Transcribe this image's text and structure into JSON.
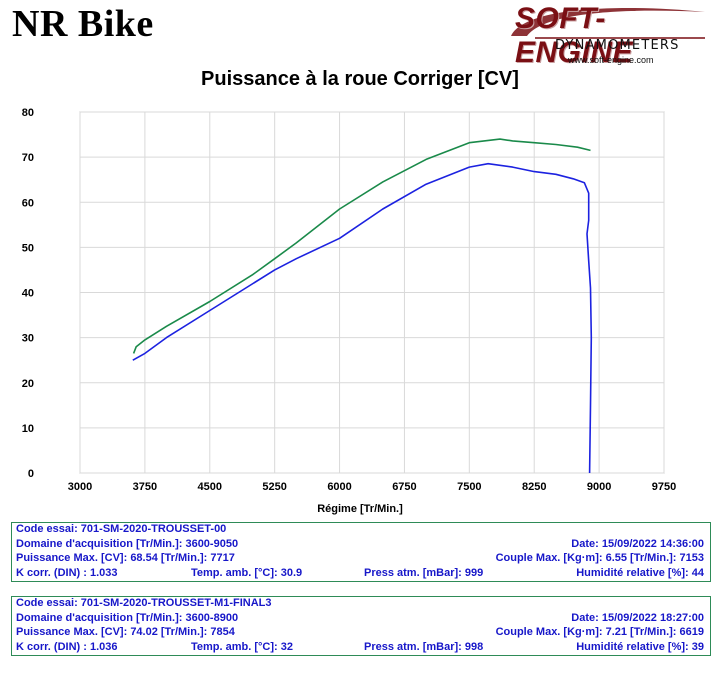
{
  "header": {
    "brand": "NR Bike",
    "logo_main": "SOFT-ENGINE",
    "logo_sub": "DYNAMOMETERS",
    "logo_url": "www.soft-engine.com"
  },
  "colors": {
    "green_series": "#1a8a4a",
    "blue_series": "#1c22e0",
    "grid": "#d9d9d9",
    "info_text": "#1717c9",
    "info_border": "#2e8b57"
  },
  "chart_data": {
    "type": "line",
    "title": "Puissance à la roue Corriger [CV]",
    "xlabel": "Régime [Tr/Min.]",
    "ylabel": "",
    "xlim": [
      3000,
      9750
    ],
    "ylim": [
      0,
      80
    ],
    "x_ticks": [
      "3000",
      "3750",
      "4500",
      "5250",
      "6000",
      "6750",
      "7500",
      "8250",
      "9000",
      "9750"
    ],
    "y_ticks": [
      "0",
      "10",
      "20",
      "30",
      "40",
      "50",
      "60",
      "70",
      "80"
    ],
    "grid": true,
    "series": [
      {
        "color": "#1a8a4a",
        "points": [
          [
            3620,
            26.5
          ],
          [
            3650,
            28
          ],
          [
            3750,
            29.5
          ],
          [
            4000,
            32.5
          ],
          [
            4500,
            38
          ],
          [
            5000,
            44
          ],
          [
            5250,
            47.5
          ],
          [
            5500,
            51
          ],
          [
            6000,
            58.5
          ],
          [
            6500,
            64.5
          ],
          [
            7000,
            69.5
          ],
          [
            7500,
            73.2
          ],
          [
            7854,
            74.0
          ],
          [
            8000,
            73.6
          ],
          [
            8250,
            73.2
          ],
          [
            8500,
            72.8
          ],
          [
            8750,
            72.2
          ],
          [
            8900,
            71.5
          ]
        ]
      },
      {
        "color": "#1c22e0",
        "points": [
          [
            3610,
            25
          ],
          [
            3750,
            26.5
          ],
          [
            4000,
            30
          ],
          [
            4500,
            36
          ],
          [
            5000,
            42
          ],
          [
            5250,
            45
          ],
          [
            5500,
            47.5
          ],
          [
            6000,
            52
          ],
          [
            6500,
            58.5
          ],
          [
            7000,
            64
          ],
          [
            7500,
            67.8
          ],
          [
            7717,
            68.54
          ],
          [
            8000,
            67.8
          ],
          [
            8250,
            66.8
          ],
          [
            8500,
            66.2
          ],
          [
            8700,
            65.2
          ],
          [
            8830,
            64.3
          ],
          [
            8880,
            62
          ],
          [
            8880,
            56
          ],
          [
            8860,
            53
          ],
          [
            8880,
            47
          ],
          [
            8900,
            41
          ],
          [
            8910,
            30
          ],
          [
            8900,
            15
          ],
          [
            8890,
            0
          ]
        ]
      }
    ]
  },
  "info_boxes": [
    {
      "row1": {
        "a": "Code essai: 701-SM-2020-TROUSSET-00"
      },
      "row2": {
        "a": "Domaine d'acquisition [Tr/Min.]: 3600-9050",
        "r": "Date: 15/09/2022   14:36:00"
      },
      "row3": {
        "a": "Puissance Max. [CV]: 68.54   [Tr/Min.]: 7717",
        "r": "Couple Max. [Kg·m]: 6.55   [Tr/Min.]: 7153"
      },
      "row4": {
        "a": "K corr. (DIN) : 1.033",
        "b": "Temp. amb. [°C]: 30.9",
        "c": "Press atm. [mBar]: 999",
        "r": "Humidité relative [%]: 44"
      }
    },
    {
      "row1": {
        "a": "Code essai: 701-SM-2020-TROUSSET-M1-FINAL3"
      },
      "row2": {
        "a": "Domaine d'acquisition [Tr/Min.]: 3600-8900",
        "r": "Date: 15/09/2022   18:27:00"
      },
      "row3": {
        "a": "Puissance Max. [CV]: 74.02   [Tr/Min.]: 7854",
        "r": "Couple Max. [Kg·m]: 7.21   [Tr/Min.]: 6619"
      },
      "row4": {
        "a": "K corr. (DIN) : 1.036",
        "b": "Temp. amb. [°C]: 32",
        "c": "Press atm. [mBar]: 998",
        "r": "Humidité relative [%]: 39"
      }
    }
  ]
}
